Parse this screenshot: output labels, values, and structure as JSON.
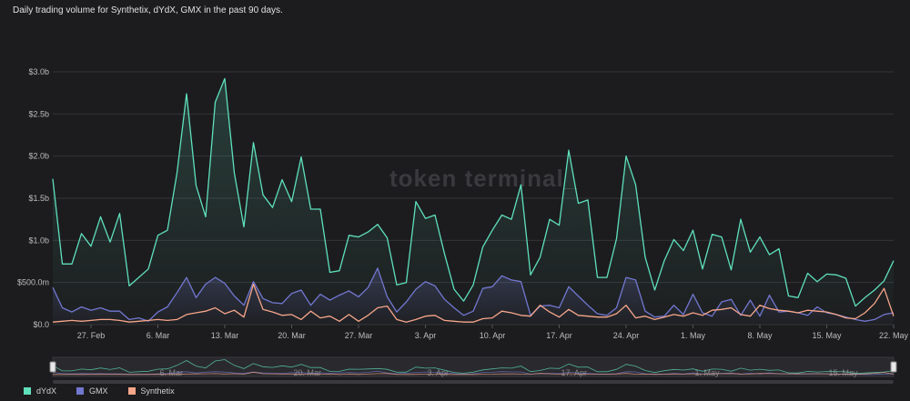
{
  "title": "Daily trading volume for Synthetix, dYdX, GMX in the past 90 days.",
  "watermark": "token terminal_",
  "chart_data": {
    "type": "line",
    "y_ticks": [
      {
        "value": 0,
        "label": "$0.0"
      },
      {
        "value": 500,
        "label": "$500.0m"
      },
      {
        "value": 1000,
        "label": "$1.0b"
      },
      {
        "value": 1500,
        "label": "$1.5b"
      },
      {
        "value": 2000,
        "label": "$2.0b"
      },
      {
        "value": 2500,
        "label": "$2.5b"
      },
      {
        "value": 3000,
        "label": "$3.0b"
      }
    ],
    "ylim": [
      0,
      3000
    ],
    "x_ticks": [
      {
        "index": 4,
        "label": "27. Feb"
      },
      {
        "index": 11,
        "label": "6. Mar"
      },
      {
        "index": 18,
        "label": "13. Mar"
      },
      {
        "index": 25,
        "label": "20. Mar"
      },
      {
        "index": 32,
        "label": "27. Mar"
      },
      {
        "index": 39,
        "label": "3. Apr"
      },
      {
        "index": 46,
        "label": "10. Apr"
      },
      {
        "index": 53,
        "label": "17. Apr"
      },
      {
        "index": 60,
        "label": "24. Apr"
      },
      {
        "index": 67,
        "label": "1. May"
      },
      {
        "index": 74,
        "label": "8. May"
      },
      {
        "index": 81,
        "label": "15. May"
      },
      {
        "index": 88,
        "label": "22. May"
      }
    ],
    "navigator_ticks": [
      {
        "index": 11,
        "label": "6. Mar"
      },
      {
        "index": 25,
        "label": "20. Mar"
      },
      {
        "index": 39,
        "label": "3. Apr"
      },
      {
        "index": 53,
        "label": "17. Apr"
      },
      {
        "index": 67,
        "label": "1. May"
      },
      {
        "index": 81,
        "label": "15. May"
      }
    ],
    "series": [
      {
        "name": "dYdX",
        "color": "#5fe0bd",
        "values": [
          1730,
          720,
          720,
          1080,
          930,
          1280,
          980,
          1320,
          460,
          560,
          660,
          1060,
          1120,
          1800,
          2740,
          1650,
          1280,
          2640,
          2920,
          1800,
          1160,
          2160,
          1540,
          1390,
          1720,
          1460,
          1990,
          1370,
          1370,
          620,
          640,
          1060,
          1040,
          1100,
          1190,
          1030,
          470,
          500,
          1460,
          1260,
          1300,
          840,
          420,
          280,
          470,
          920,
          1120,
          1300,
          1250,
          1660,
          590,
          800,
          1250,
          1180,
          2070,
          1440,
          1480,
          560,
          560,
          1020,
          2000,
          1660,
          800,
          410,
          760,
          1010,
          880,
          1120,
          660,
          1070,
          1040,
          650,
          1250,
          860,
          1040,
          830,
          900,
          340,
          320,
          610,
          510,
          600,
          590,
          550,
          220,
          320,
          410,
          520,
          760
        ]
      },
      {
        "name": "GMX",
        "color": "#7277d0",
        "values": [
          440,
          200,
          150,
          210,
          170,
          200,
          160,
          160,
          60,
          80,
          40,
          150,
          210,
          380,
          560,
          320,
          480,
          560,
          490,
          340,
          230,
          510,
          310,
          260,
          250,
          370,
          410,
          230,
          360,
          290,
          350,
          400,
          330,
          440,
          670,
          330,
          150,
          270,
          420,
          510,
          460,
          300,
          200,
          110,
          160,
          430,
          450,
          580,
          530,
          510,
          110,
          220,
          230,
          200,
          450,
          340,
          230,
          130,
          110,
          200,
          560,
          530,
          160,
          90,
          100,
          230,
          120,
          360,
          140,
          100,
          270,
          300,
          110,
          290,
          100,
          350,
          150,
          160,
          140,
          110,
          210,
          140,
          120,
          90,
          60,
          40,
          60,
          120,
          140
        ]
      },
      {
        "name": "Synthetix",
        "color": "#f7a68a",
        "values": [
          30,
          40,
          50,
          40,
          50,
          60,
          60,
          50,
          30,
          40,
          50,
          60,
          50,
          60,
          120,
          140,
          160,
          200,
          130,
          170,
          90,
          480,
          180,
          150,
          110,
          120,
          60,
          160,
          80,
          100,
          40,
          120,
          40,
          110,
          200,
          220,
          60,
          30,
          60,
          100,
          110,
          50,
          40,
          30,
          30,
          70,
          80,
          160,
          140,
          110,
          100,
          230,
          150,
          90,
          180,
          110,
          100,
          90,
          90,
          130,
          230,
          80,
          100,
          60,
          90,
          120,
          100,
          140,
          110,
          170,
          180,
          200,
          120,
          100,
          230,
          190,
          170,
          160,
          140,
          170,
          160,
          150,
          120,
          80,
          70,
          140,
          250,
          430,
          100
        ]
      }
    ]
  }
}
